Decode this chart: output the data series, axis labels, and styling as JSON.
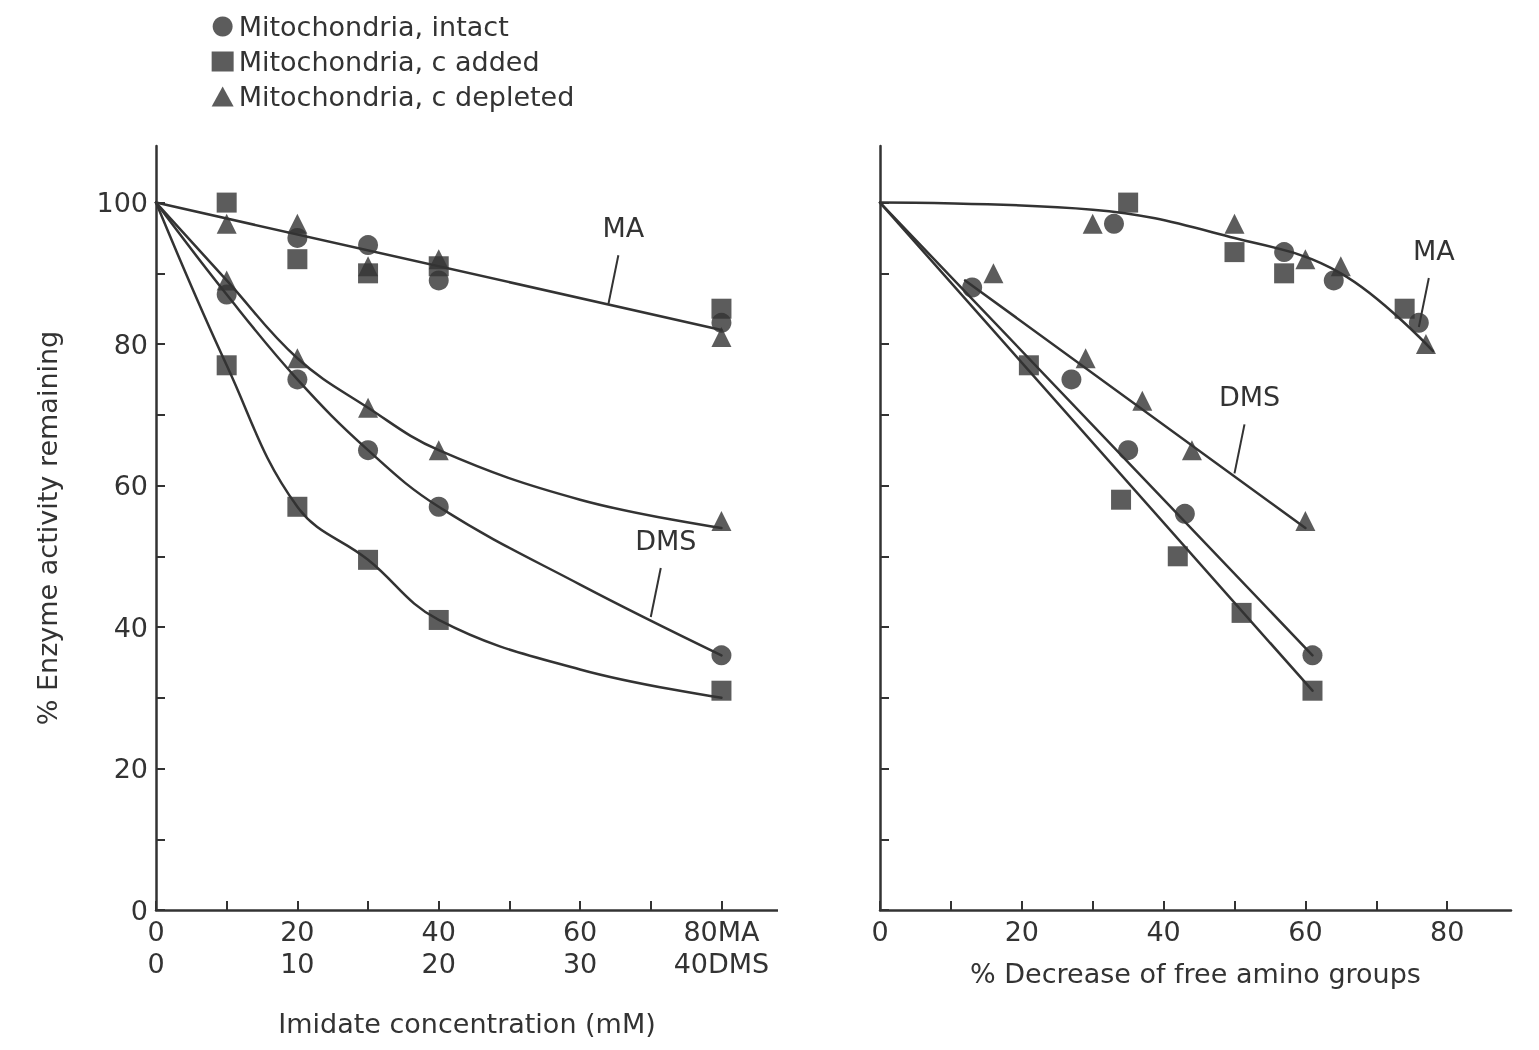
{
  "chart_data": [
    {
      "type": "scatter",
      "xlabel": "Imidate concentration (mM)",
      "ylabel": "% Enzyme activity remaining",
      "legend": "top",
      "xlim": [
        0,
        88
      ],
      "xticks": [
        0,
        {
          "value": 10,
          "label": null
        },
        20,
        {
          "value": 30,
          "label": null
        },
        40,
        {
          "value": 50,
          "label": null
        },
        60,
        {
          "value": 70,
          "label": null
        },
        {
          "value": 80,
          "label": "80MA"
        }
      ],
      "x2lim": [
        0,
        44
      ],
      "x2ticks": [
        0,
        10,
        20,
        30,
        {
          "value": 40,
          "label": "40DMS"
        }
      ],
      "ylim": [
        0,
        108
      ],
      "yticks": [
        0,
        {
          "value": 10,
          "label": null
        },
        20,
        {
          "value": 30,
          "label": null
        },
        40,
        {
          "value": 50,
          "label": null
        },
        60,
        {
          "value": 70,
          "label": null
        },
        80,
        {
          "value": 90,
          "label": null
        },
        100
      ],
      "annotations": [
        {
          "text": "MA",
          "x": 64,
          "y": 85.2
        },
        {
          "text": "DMS",
          "x": 70,
          "y": 41
        }
      ],
      "series": [
        {
          "name": "Mitochondria, intact",
          "marker": "circle",
          "color": "#333333",
          "x": [
            20,
            30,
            40,
            80,
            10,
            20,
            30,
            40,
            80
          ],
          "values": [
            95,
            94,
            89,
            83,
            87,
            75,
            65,
            57,
            36
          ]
        },
        {
          "name": "Mitochondria, c added",
          "marker": "square",
          "color": "#333333",
          "x": [
            10,
            20,
            30,
            40,
            80,
            10,
            20,
            30,
            40,
            80
          ],
          "values": [
            100,
            92,
            90,
            91,
            85,
            77,
            57,
            49.5,
            41,
            31
          ]
        },
        {
          "name": "Mitochondria, c depleted",
          "marker": "triangle",
          "color": "#333333",
          "x": [
            10,
            20,
            30,
            40,
            80,
            10,
            20,
            30,
            40,
            80
          ],
          "values": [
            97,
            97,
            91,
            92,
            81,
            89,
            78,
            71,
            65,
            55
          ]
        },
        {
          "type": "line",
          "marker": "none",
          "color": "#333333",
          "x": [
            0,
            80
          ],
          "values": [
            100,
            82
          ]
        },
        {
          "type": "line",
          "marker": "none",
          "color": "#333333",
          "x": [
            0,
            10,
            20,
            30,
            40,
            60,
            80
          ],
          "values": [
            100,
            87,
            75,
            65,
            57,
            46,
            36
          ]
        },
        {
          "type": "line",
          "marker": "none",
          "color": "#333333",
          "x": [
            0,
            10,
            20,
            30,
            40,
            60,
            80
          ],
          "values": [
            100,
            77,
            57,
            49.5,
            41,
            34,
            30
          ]
        },
        {
          "type": "line",
          "marker": "none",
          "color": "#333333",
          "x": [
            0,
            10,
            20,
            30,
            40,
            60,
            80
          ],
          "values": [
            100,
            89,
            78,
            71,
            65,
            58,
            54
          ]
        }
      ]
    },
    {
      "type": "scatter",
      "xlabel": "% Decrease of free amino groups",
      "tick_labels": "x",
      "xlim": [
        0,
        89
      ],
      "xticks": [
        0,
        {
          "value": 10,
          "label": null
        },
        20,
        {
          "value": 30,
          "label": null
        },
        40,
        {
          "value": 50,
          "label": null
        },
        60,
        {
          "value": 70,
          "label": null
        },
        80
      ],
      "ylim": [
        0,
        108
      ],
      "yticks": [
        0,
        {
          "value": 10,
          "label": null
        },
        {
          "value": 20,
          "label": null
        },
        {
          "value": 30,
          "label": null
        },
        {
          "value": 40,
          "label": null
        },
        {
          "value": 50,
          "label": null
        },
        {
          "value": 60,
          "label": null
        },
        {
          "value": 70,
          "label": null
        },
        {
          "value": 80,
          "label": null
        },
        {
          "value": 90,
          "label": null
        },
        {
          "value": 100,
          "label": null
        }
      ],
      "annotations": [
        {
          "text": "MA",
          "x": 76,
          "y": 82
        },
        {
          "text": "DMS",
          "x": 50,
          "y": 61.3
        }
      ],
      "series": [
        {
          "marker": "circle",
          "color": "#333333",
          "x": [
            33,
            57,
            64,
            76,
            13,
            27,
            35,
            43,
            61
          ],
          "values": [
            97,
            93,
            89,
            83,
            88,
            75,
            65,
            56,
            36
          ]
        },
        {
          "marker": "square",
          "color": "#333333",
          "x": [
            35,
            50,
            57,
            74,
            21,
            34,
            42,
            51,
            61
          ],
          "values": [
            100,
            93,
            90,
            85,
            77,
            58,
            50,
            42,
            31
          ]
        },
        {
          "marker": "triangle",
          "color": "#333333",
          "x": [
            30,
            50,
            60,
            65,
            77,
            16,
            29,
            37,
            44,
            60
          ],
          "values": [
            97,
            97,
            92,
            91,
            80,
            90,
            78,
            72,
            65,
            55
          ]
        },
        {
          "type": "line",
          "marker": "none",
          "color": "#333333",
          "x": [
            0,
            30,
            50,
            65,
            78
          ],
          "values": [
            100,
            99,
            95,
            90,
            79
          ]
        },
        {
          "type": "line",
          "marker": "none",
          "color": "#333333",
          "x": [
            0,
            61
          ],
          "values": [
            100,
            36
          ]
        },
        {
          "type": "line",
          "marker": "none",
          "color": "#333333",
          "x": [
            0,
            61
          ],
          "values": [
            100,
            31
          ]
        },
        {
          "type": "line",
          "marker": "none",
          "color": "#333333",
          "x": [
            12,
            60
          ],
          "values": [
            89,
            54
          ]
        }
      ]
    }
  ]
}
